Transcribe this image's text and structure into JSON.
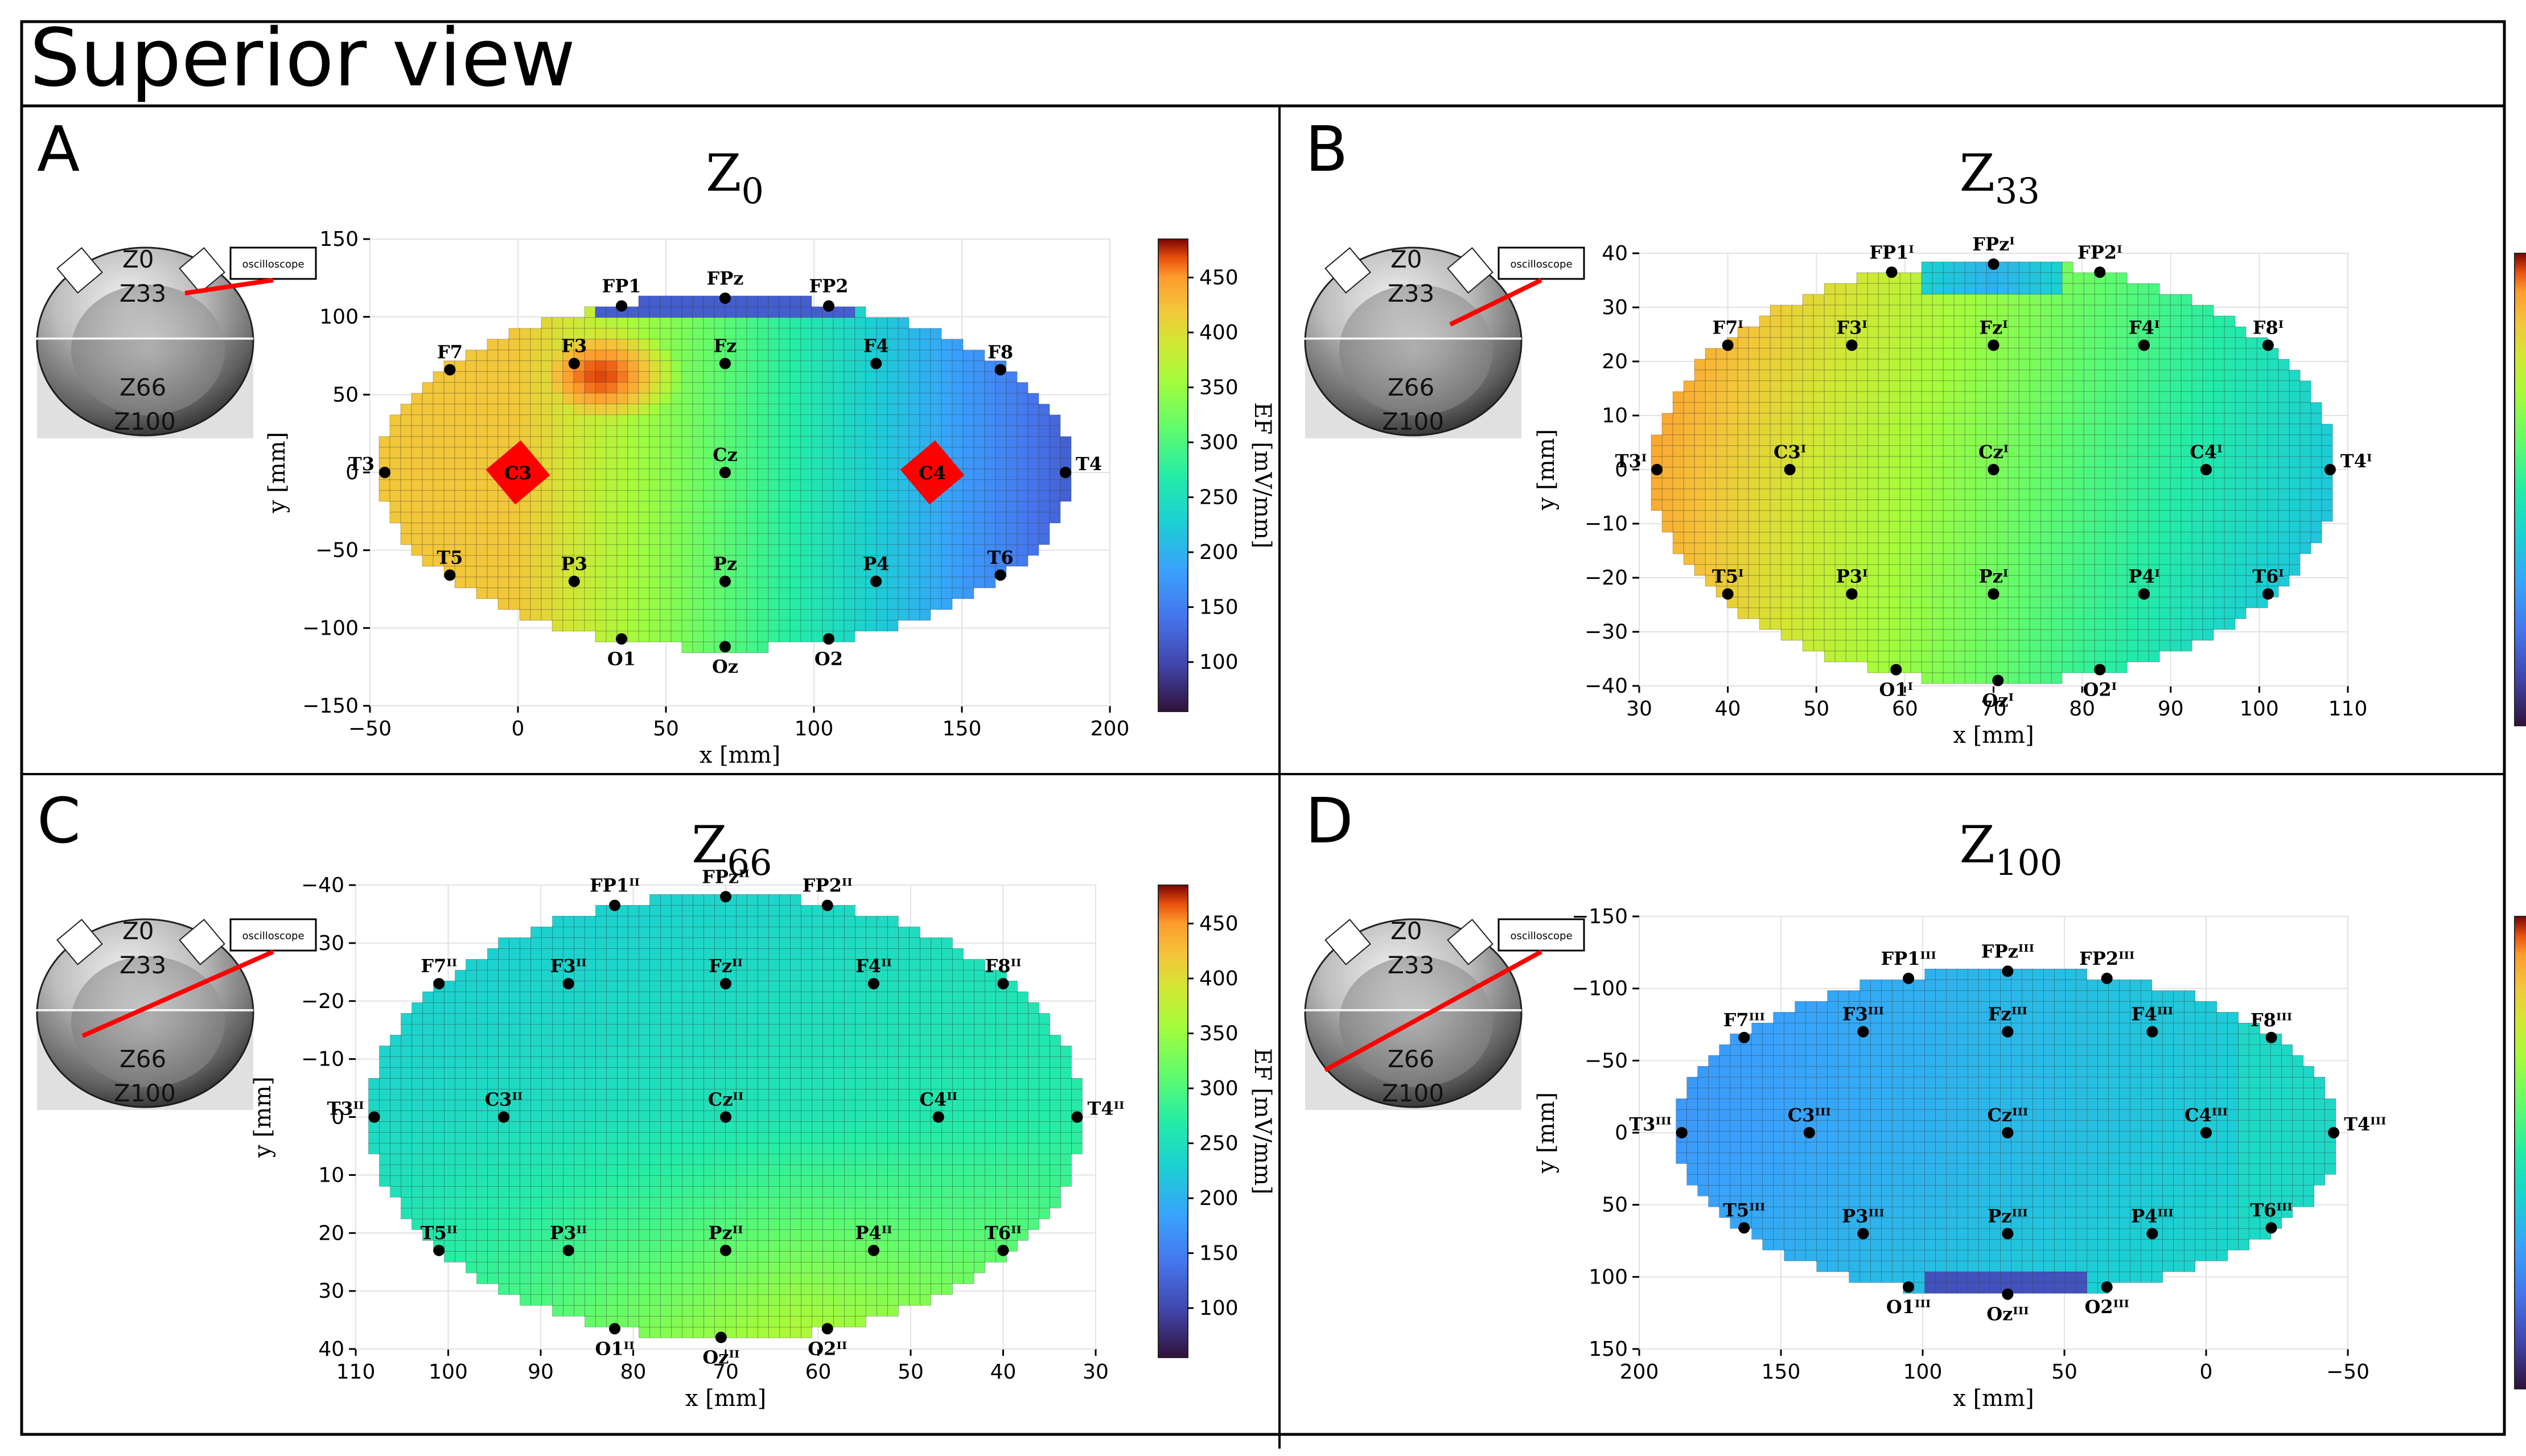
{
  "figure_title": "Superior view",
  "colorbar": {
    "label": "EF [mV/mm]",
    "ticks": [
      "100",
      "150",
      "200",
      "250",
      "300",
      "350",
      "400",
      "450"
    ],
    "range": [
      55,
      485
    ]
  },
  "inset": {
    "labels": [
      "Z0",
      "Z33",
      "Z66",
      "Z100"
    ],
    "oscilloscope_label": "oscilloscope"
  },
  "chart_data": [
    {
      "type": "heatmap",
      "panel_letter": "A",
      "title_base": "Z",
      "title_sub": "0",
      "xlabel": "x [mm]",
      "ylabel": "y [mm]",
      "xlim": [
        -50,
        200
      ],
      "ylim": [
        150,
        -150
      ],
      "xticks": [
        -50,
        0,
        50,
        100,
        150,
        200
      ],
      "yticks": [
        150,
        100,
        50,
        0,
        -50,
        -100,
        -150
      ],
      "stimulation_pads": [
        {
          "label": "C3",
          "x": 0,
          "y": 0
        },
        {
          "label": "C4",
          "x": 140,
          "y": 0
        }
      ],
      "electrodes": [
        {
          "label": "FPz",
          "x": 70,
          "y": 112
        },
        {
          "label": "FP1",
          "x": 35,
          "y": 107
        },
        {
          "label": "FP2",
          "x": 105,
          "y": 107
        },
        {
          "label": "F7",
          "x": -23,
          "y": 66
        },
        {
          "label": "F3",
          "x": 19,
          "y": 70
        },
        {
          "label": "Fz",
          "x": 70,
          "y": 70
        },
        {
          "label": "F4",
          "x": 121,
          "y": 70
        },
        {
          "label": "F8",
          "x": 163,
          "y": 66
        },
        {
          "label": "T3",
          "x": -45,
          "y": 0
        },
        {
          "label": "Cz",
          "x": 70,
          "y": 0
        },
        {
          "label": "T4",
          "x": 185,
          "y": 0
        },
        {
          "label": "T5",
          "x": -23,
          "y": -66
        },
        {
          "label": "P3",
          "x": 19,
          "y": -70
        },
        {
          "label": "Pz",
          "x": 70,
          "y": -70
        },
        {
          "label": "P4",
          "x": 121,
          "y": -70
        },
        {
          "label": "T6",
          "x": 163,
          "y": -66
        },
        {
          "label": "O1",
          "x": 35,
          "y": -107
        },
        {
          "label": "Oz",
          "x": 70,
          "y": -112
        },
        {
          "label": "O2",
          "x": 105,
          "y": -107
        }
      ]
    },
    {
      "type": "heatmap",
      "panel_letter": "B",
      "title_base": "Z",
      "title_sub": "33",
      "xlabel": "x [mm]",
      "ylabel": "y [mm]",
      "xlim": [
        30,
        110
      ],
      "ylim": [
        40,
        -40
      ],
      "xticks": [
        30,
        40,
        50,
        60,
        70,
        80,
        90,
        100,
        110
      ],
      "yticks": [
        40,
        30,
        20,
        10,
        0,
        -10,
        -20,
        -30,
        -40
      ],
      "electrodes": [
        {
          "label": "FPzᴵ",
          "x": 70,
          "y": 38
        },
        {
          "label": "FP1ᴵ",
          "x": 58.5,
          "y": 36.5
        },
        {
          "label": "FP2ᴵ",
          "x": 82,
          "y": 36.5
        },
        {
          "label": "F7ᴵ",
          "x": 40,
          "y": 23
        },
        {
          "label": "F3ᴵ",
          "x": 54,
          "y": 23
        },
        {
          "label": "Fzᴵ",
          "x": 70,
          "y": 23
        },
        {
          "label": "F4ᴵ",
          "x": 87,
          "y": 23
        },
        {
          "label": "F8ᴵ",
          "x": 101,
          "y": 23
        },
        {
          "label": "T3ᴵ",
          "x": 32,
          "y": 0
        },
        {
          "label": "C3ᴵ",
          "x": 47,
          "y": 0
        },
        {
          "label": "Czᴵ",
          "x": 70,
          "y": 0
        },
        {
          "label": "C4ᴵ",
          "x": 94,
          "y": 0
        },
        {
          "label": "T4ᴵ",
          "x": 108,
          "y": 0
        },
        {
          "label": "T5ᴵ",
          "x": 40,
          "y": -23
        },
        {
          "label": "P3ᴵ",
          "x": 54,
          "y": -23
        },
        {
          "label": "Pzᴵ",
          "x": 70,
          "y": -23
        },
        {
          "label": "P4ᴵ",
          "x": 87,
          "y": -23
        },
        {
          "label": "T6ᴵ",
          "x": 101,
          "y": -23
        },
        {
          "label": "O1ᴵ",
          "x": 59,
          "y": -37
        },
        {
          "label": "Ozᴵ",
          "x": 70.5,
          "y": -39
        },
        {
          "label": "O2ᴵ",
          "x": 82,
          "y": -37
        }
      ]
    },
    {
      "type": "heatmap",
      "panel_letter": "C",
      "title_base": "Z",
      "title_sub": "66",
      "xlabel": "x [mm]",
      "ylabel": "y [mm]",
      "xlim": [
        110,
        30
      ],
      "ylim": [
        -40,
        40
      ],
      "xticks": [
        110,
        100,
        90,
        80,
        70,
        60,
        50,
        40,
        30
      ],
      "yticks": [
        -40,
        -30,
        -20,
        -10,
        0,
        10,
        20,
        30,
        40
      ],
      "electrodes": [
        {
          "label": "FPzᴵᴵ",
          "x": 70,
          "y": -38
        },
        {
          "label": "FP1ᴵᴵ",
          "x": 82,
          "y": -36.5
        },
        {
          "label": "FP2ᴵᴵ",
          "x": 59,
          "y": -36.5
        },
        {
          "label": "F7ᴵᴵ",
          "x": 101,
          "y": -23
        },
        {
          "label": "F3ᴵᴵ",
          "x": 87,
          "y": -23
        },
        {
          "label": "Fzᴵᴵ",
          "x": 70,
          "y": -23
        },
        {
          "label": "F4ᴵᴵ",
          "x": 54,
          "y": -23
        },
        {
          "label": "F8ᴵᴵ",
          "x": 40,
          "y": -23
        },
        {
          "label": "T3ᴵᴵ",
          "x": 108,
          "y": 0
        },
        {
          "label": "C3ᴵᴵ",
          "x": 94,
          "y": 0
        },
        {
          "label": "Czᴵᴵ",
          "x": 70,
          "y": 0
        },
        {
          "label": "C4ᴵᴵ",
          "x": 47,
          "y": 0
        },
        {
          "label": "T4ᴵᴵ",
          "x": 32,
          "y": 0
        },
        {
          "label": "T5ᴵᴵ",
          "x": 101,
          "y": 23
        },
        {
          "label": "P3ᴵᴵ",
          "x": 87,
          "y": 23
        },
        {
          "label": "Pzᴵᴵ",
          "x": 70,
          "y": 23
        },
        {
          "label": "P4ᴵᴵ",
          "x": 54,
          "y": 23
        },
        {
          "label": "T6ᴵᴵ",
          "x": 40,
          "y": 23
        },
        {
          "label": "O1ᴵᴵ",
          "x": 82,
          "y": 36.5
        },
        {
          "label": "Ozᴵᴵ",
          "x": 70.5,
          "y": 38
        },
        {
          "label": "O2ᴵᴵ",
          "x": 59,
          "y": 36.5
        }
      ]
    },
    {
      "type": "heatmap",
      "panel_letter": "D",
      "title_base": "Z",
      "title_sub": "100",
      "xlabel": "x [mm]",
      "ylabel": "y [mm]",
      "xlim": [
        200,
        -50
      ],
      "ylim": [
        -150,
        150
      ],
      "xticks": [
        200,
        150,
        100,
        50,
        0,
        -50
      ],
      "yticks": [
        -150,
        -100,
        -50,
        0,
        50,
        100,
        150
      ],
      "electrodes": [
        {
          "label": "FPzᴵᴵᴵ",
          "x": 70,
          "y": -112
        },
        {
          "label": "FP1ᴵᴵᴵ",
          "x": 105,
          "y": -107
        },
        {
          "label": "FP2ᴵᴵᴵ",
          "x": 35,
          "y": -107
        },
        {
          "label": "F7ᴵᴵᴵ",
          "x": 163,
          "y": -66
        },
        {
          "label": "F3ᴵᴵᴵ",
          "x": 121,
          "y": -70
        },
        {
          "label": "Fzᴵᴵᴵ",
          "x": 70,
          "y": -70
        },
        {
          "label": "F4ᴵᴵᴵ",
          "x": 19,
          "y": -70
        },
        {
          "label": "F8ᴵᴵᴵ",
          "x": -23,
          "y": -66
        },
        {
          "label": "T3ᴵᴵᴵ",
          "x": 185,
          "y": 0
        },
        {
          "label": "C3ᴵᴵᴵ",
          "x": 140,
          "y": 0
        },
        {
          "label": "Czᴵᴵᴵ",
          "x": 70,
          "y": 0
        },
        {
          "label": "C4ᴵᴵᴵ",
          "x": 0,
          "y": 0
        },
        {
          "label": "T4ᴵᴵᴵ",
          "x": -45,
          "y": 0
        },
        {
          "label": "T5ᴵᴵᴵ",
          "x": 163,
          "y": 66
        },
        {
          "label": "P3ᴵᴵᴵ",
          "x": 121,
          "y": 70
        },
        {
          "label": "Pzᴵᴵᴵ",
          "x": 70,
          "y": 70
        },
        {
          "label": "P4ᴵᴵᴵ",
          "x": 19,
          "y": 70
        },
        {
          "label": "T6ᴵᴵᴵ",
          "x": -23,
          "y": 66
        },
        {
          "label": "O1ᴵᴵᴵ",
          "x": 105,
          "y": 107
        },
        {
          "label": "Ozᴵᴵᴵ",
          "x": 70,
          "y": 112
        },
        {
          "label": "O2ᴵᴵᴵ",
          "x": 35,
          "y": 107
        }
      ]
    }
  ]
}
